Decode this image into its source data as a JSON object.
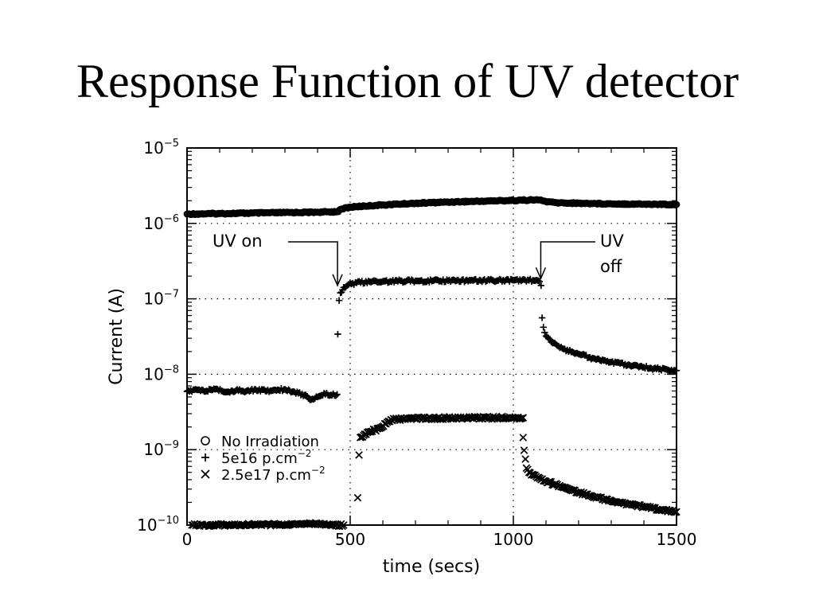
{
  "slide": {
    "title": "Response Function of UV detector"
  },
  "chart_data": {
    "type": "scatter",
    "title": "",
    "xlabel": "time  (secs)",
    "ylabel": "Current  (A)",
    "xlim": [
      0,
      1500
    ],
    "ylim": [
      1e-10,
      1e-05
    ],
    "y_scale": "log",
    "grid": "dotted",
    "legend_placement": "lower-left",
    "x_ticks": [
      {
        "value": 0,
        "label": "0"
      },
      {
        "value": 500,
        "label": "500"
      },
      {
        "value": 1000,
        "label": "1000"
      },
      {
        "value": 1500,
        "label": "1500"
      }
    ],
    "y_ticks": [
      {
        "value": 1e-10,
        "base": "10",
        "exp": "−10"
      },
      {
        "value": 1e-09,
        "base": "10",
        "exp": "−9"
      },
      {
        "value": 1e-08,
        "base": "10",
        "exp": "−8"
      },
      {
        "value": 1e-07,
        "base": "10",
        "exp": "−7"
      },
      {
        "value": 1e-06,
        "base": "10",
        "exp": "−6"
      },
      {
        "value": 1e-05,
        "base": "10",
        "exp": "−5"
      }
    ],
    "annotations": [
      {
        "name": "uv-on",
        "lines": [
          "UV  on"
        ],
        "arrow_at": [
          466,
          1.3e-07
        ]
      },
      {
        "name": "uv-off",
        "lines": [
          "UV",
          "off"
        ],
        "arrow_at": [
          1084,
          1.6e-07
        ]
      }
    ],
    "series": [
      {
        "name": "No Irradiation",
        "marker": "circle",
        "segments": [
          [
            [
              0,
              1.33e-06
            ],
            [
              100,
              1.35e-06
            ],
            [
              200,
              1.37e-06
            ],
            [
              300,
              1.39e-06
            ],
            [
              400,
              1.41e-06
            ],
            [
              460,
              1.43e-06
            ],
            [
              475,
              1.55e-06
            ],
            [
              490,
              1.62e-06
            ],
            [
              520,
              1.67e-06
            ],
            [
              600,
              1.76e-06
            ],
            [
              700,
              1.85e-06
            ],
            [
              800,
              1.92e-06
            ],
            [
              900,
              1.97e-06
            ],
            [
              1000,
              2.02e-06
            ],
            [
              1080,
              2.05e-06
            ],
            [
              1100,
              1.95e-06
            ],
            [
              1130,
              1.88e-06
            ],
            [
              1200,
              1.85e-06
            ],
            [
              1300,
              1.82e-06
            ],
            [
              1400,
              1.8e-06
            ],
            [
              1500,
              1.78e-06
            ]
          ]
        ]
      },
      {
        "name": "5e16  p.cm",
        "name_sup": "−2",
        "marker": "plus",
        "segments": [
          [
            [
              0,
              5.9e-09
            ],
            [
              30,
              6.2e-09
            ],
            [
              60,
              6e-09
            ],
            [
              90,
              6.4e-09
            ],
            [
              120,
              5.8e-09
            ],
            [
              150,
              6.1e-09
            ],
            [
              180,
              5.9e-09
            ],
            [
              210,
              6.3e-09
            ],
            [
              240,
              6e-09
            ],
            [
              270,
              6.2e-09
            ],
            [
              300,
              6.3e-09
            ],
            [
              330,
              5.8e-09
            ],
            [
              360,
              5.3e-09
            ],
            [
              380,
              4.6e-09
            ],
            [
              400,
              5e-09
            ],
            [
              420,
              5.6e-09
            ],
            [
              440,
              5.3e-09
            ],
            [
              460,
              5.4e-09
            ]
          ],
          [
            [
              462,
              3.4e-08
            ],
            [
              466,
              9.5e-08
            ],
            [
              470,
              1.2e-07
            ],
            [
              480,
              1.42e-07
            ],
            [
              495,
              1.55e-07
            ],
            [
              520,
              1.63e-07
            ],
            [
              560,
              1.68e-07
            ],
            [
              600,
              1.7e-07
            ],
            [
              700,
              1.73e-07
            ],
            [
              800,
              1.74e-07
            ],
            [
              900,
              1.75e-07
            ],
            [
              1000,
              1.76e-07
            ],
            [
              1060,
              1.76e-07
            ],
            [
              1080,
              1.7e-07
            ],
            [
              1085,
              1.5e-07
            ]
          ],
          [
            [
              1088,
              5.6e-08
            ],
            [
              1092,
              4.2e-08
            ],
            [
              1100,
              3.2e-08
            ],
            [
              1120,
              2.6e-08
            ],
            [
              1150,
              2.2e-08
            ],
            [
              1200,
              1.85e-08
            ],
            [
              1250,
              1.6e-08
            ],
            [
              1300,
              1.45e-08
            ],
            [
              1350,
              1.32e-08
            ],
            [
              1400,
              1.24e-08
            ],
            [
              1450,
              1.17e-08
            ],
            [
              1500,
              1.12e-08
            ]
          ]
        ]
      },
      {
        "name": "2.5e17  p.cm",
        "name_sup": "−2",
        "marker": "x",
        "segments": [
          [
            [
              15,
              1e-10
            ],
            [
              55,
              1e-10
            ],
            [
              100,
              1e-10
            ],
            [
              150,
              1e-10
            ],
            [
              200,
              1.02e-10
            ],
            [
              240,
              1.02e-10
            ],
            [
              260,
              1.01e-10
            ],
            [
              280,
              1.03e-10
            ],
            [
              300,
              1e-10
            ],
            [
              380,
              1.05e-10
            ],
            [
              440,
              1e-10
            ],
            [
              480,
              1e-10
            ]
          ],
          [
            [
              523,
              2.3e-10
            ],
            [
              527,
              8.5e-10
            ],
            [
              531,
              1.45e-09
            ],
            [
              545,
              1.6e-09
            ],
            [
              560,
              1.72e-09
            ],
            [
              590,
              1.92e-09
            ],
            [
              610,
              2.2e-09
            ],
            [
              625,
              2.5e-09
            ],
            [
              700,
              2.6e-09
            ],
            [
              800,
              2.63e-09
            ],
            [
              900,
              2.64e-09
            ],
            [
              1000,
              2.65e-09
            ],
            [
              1030,
              2.65e-09
            ]
          ],
          [
            [
              1030,
              1.45e-09
            ],
            [
              1033,
              9.8e-10
            ],
            [
              1037,
              7.5e-10
            ],
            [
              1040,
              5.7e-10
            ],
            [
              1048,
              5e-10
            ],
            [
              1070,
              4.4e-10
            ],
            [
              1100,
              3.8e-10
            ],
            [
              1150,
              3.2e-10
            ],
            [
              1200,
              2.7e-10
            ],
            [
              1250,
              2.35e-10
            ],
            [
              1300,
              2.1e-10
            ],
            [
              1350,
              1.9e-10
            ],
            [
              1400,
              1.75e-10
            ],
            [
              1450,
              1.6e-10
            ],
            [
              1500,
              1.5e-10
            ]
          ]
        ]
      }
    ]
  }
}
